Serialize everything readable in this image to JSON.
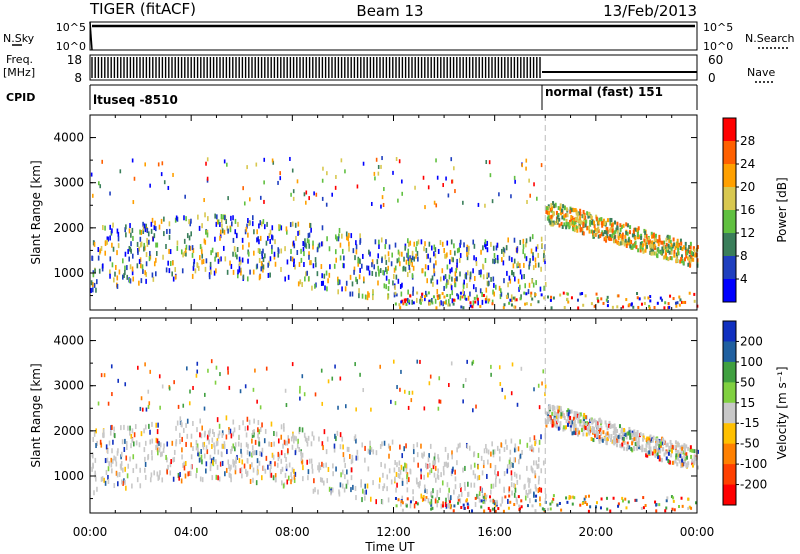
{
  "header": {
    "title_left": "TIGER (fitACF)",
    "title_center": "Beam 13",
    "title_right": "13/Feb/2013"
  },
  "strips": {
    "nsky_label": "N.Sky",
    "nsearch_label": "N.Search",
    "nsky_ticks": [
      "10^5",
      "10^0"
    ],
    "freq_label_line1": "Freq.",
    "freq_label_line2": "[MHz]",
    "freq_ticks": [
      "18",
      "8"
    ],
    "nave_label": "Nave",
    "nave_ticks": [
      "60",
      "0"
    ],
    "cpid_label": "CPID",
    "cpid_text_1": "ltuseq -8510",
    "cpid_text_2": "normal (fast) 151"
  },
  "chart_data": [
    {
      "type": "heatmap",
      "name": "power",
      "ylabel": "Slant Range [km]",
      "ylim": [
        180,
        4500
      ],
      "yticks": [
        "1000",
        "2000",
        "3000",
        "4000"
      ],
      "colorbar_label": "Power [dB]",
      "colorbar_ticks": [
        "4",
        "8",
        "12",
        "16",
        "20",
        "24",
        "28"
      ],
      "colorbar_colors": [
        "#0000ff",
        "#1f3fbf",
        "#3a7e5a",
        "#60c040",
        "#d8c850",
        "#ffa000",
        "#ff6000",
        "#ff0000"
      ],
      "xlim_hours": [
        0,
        24
      ],
      "mode_change_hour": 18.0
    },
    {
      "type": "heatmap",
      "name": "velocity",
      "ylabel": "Slant Range [km]",
      "ylim": [
        180,
        4500
      ],
      "yticks": [
        "1000",
        "2000",
        "3000",
        "4000"
      ],
      "colorbar_label": "Velocity [m s⁻¹]",
      "colorbar_ticks": [
        "200",
        "100",
        "50",
        "15",
        "-15",
        "-50",
        "-100",
        "-200"
      ],
      "colorbar_colors": [
        "#1030c0",
        "#2060a0",
        "#40a040",
        "#80d040",
        "#c8c8c8",
        "#ffc000",
        "#ff8000",
        "#ff4000",
        "#ff0000"
      ],
      "xlim_hours": [
        0,
        24
      ],
      "mode_change_hour": 18.0
    }
  ],
  "xaxis": {
    "label": "Time UT",
    "ticks": [
      "00:00",
      "04:00",
      "08:00",
      "12:00",
      "16:00",
      "20:00",
      "00:00"
    ]
  }
}
